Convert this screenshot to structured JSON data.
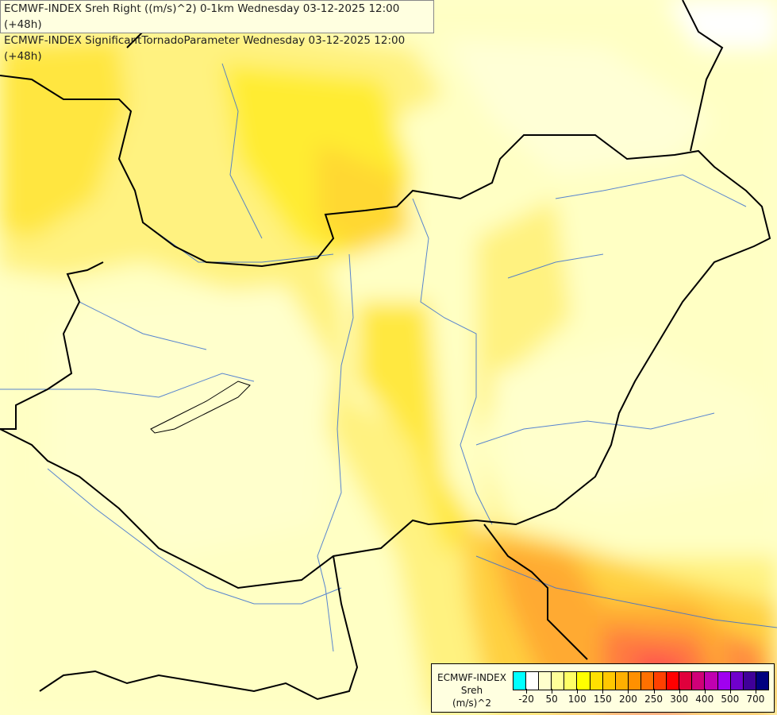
{
  "title": {
    "line1": "ECMWF-INDEX Sreh Right ((m/s)^2) 0-1km Wednesday 03-12-2025 12:00 (+48h)",
    "line2": "ECMWF-INDEX SignificantTornadoParameter Wednesday 03-12-2025 12:00 (+48h)"
  },
  "legend": {
    "source": "ECMWF-INDEX",
    "variable": "Sreh",
    "unit": "(m/s)^2",
    "colors": [
      "#00ffff",
      "#ffffff",
      "#ffffcc",
      "#ffff99",
      "#ffff66",
      "#ffff00",
      "#ffe000",
      "#ffc800",
      "#ffb000",
      "#ff9000",
      "#ff7000",
      "#ff4000",
      "#ff0000",
      "#e0003c",
      "#d00078",
      "#c000b0",
      "#a000f0",
      "#7000cc",
      "#400099",
      "#000080"
    ],
    "tick_labels": [
      "-20",
      "50",
      "100",
      "150",
      "200",
      "250",
      "300",
      "400",
      "500",
      "700"
    ]
  }
}
